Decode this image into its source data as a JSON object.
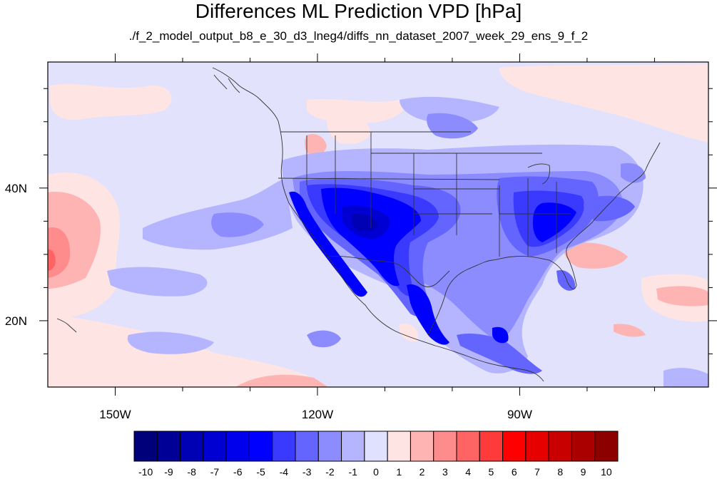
{
  "title": "Differences ML Prediction VPD [hPa]",
  "subtitle": "./f_2_model_output_b8_e_30_d3_lneg4/diffs_nn_dataset_2007_week_29_ens_9_f_2",
  "map": {
    "lon_range": [
      -160,
      -62
    ],
    "lat_range": [
      10,
      59
    ],
    "lon_ticks": [
      {
        "value": -150,
        "label": "150W"
      },
      {
        "value": -120,
        "label": "120W"
      },
      {
        "value": -90,
        "label": "90W"
      }
    ],
    "lat_ticks": [
      {
        "value": 40,
        "label": "40N"
      },
      {
        "value": 20,
        "label": "20N"
      }
    ]
  },
  "colorbar": {
    "labels": [
      "-10",
      "-9",
      "-8",
      "-7",
      "-6",
      "-5",
      "-4",
      "-3",
      "-2",
      "-1",
      "0",
      "1",
      "2",
      "3",
      "4",
      "5",
      "6",
      "7",
      "8",
      "9",
      "10"
    ],
    "colors": [
      "#00007a",
      "#000096",
      "#0000b4",
      "#0000d2",
      "#0000ec",
      "#0000ff",
      "#3a3aff",
      "#6464ff",
      "#8c8cff",
      "#b4b4ff",
      "#e0e0ff",
      "#ffe4e4",
      "#ffb4b4",
      "#ff8c8c",
      "#ff6464",
      "#ff3a3a",
      "#ff0000",
      "#e60000",
      "#c80000",
      "#aa0000",
      "#8c0000"
    ]
  }
}
